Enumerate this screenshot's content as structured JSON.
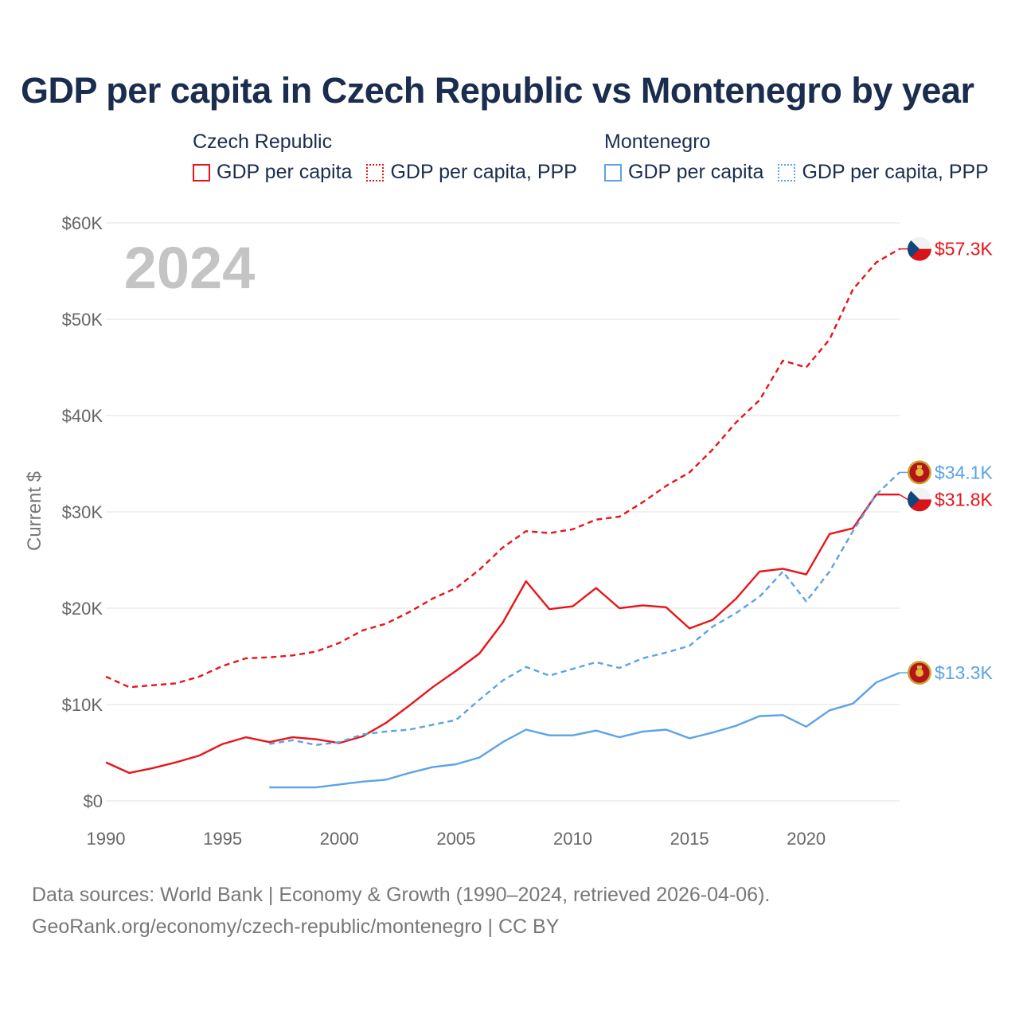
{
  "title": "GDP per capita in Czech Republic vs Montenegro by year",
  "legend": {
    "groups": [
      {
        "country": "Czech Republic",
        "color": "#e8141a",
        "items": [
          {
            "label": "GDP per capita",
            "style": "solid"
          },
          {
            "label": "GDP per capita, PPP",
            "style": "dotted"
          }
        ]
      },
      {
        "country": "Montenegro",
        "color": "#5ba3e6",
        "items": [
          {
            "label": "GDP per capita",
            "style": "solid"
          },
          {
            "label": "GDP per capita, PPP",
            "style": "dotted"
          }
        ]
      }
    ]
  },
  "year_watermark": "2024",
  "footer": {
    "line1": "Data sources: World Bank | Economy & Growth (1990–2024, retrieved 2026-04-06).",
    "line2": "GeoRank.org/economy/czech-republic/montenegro | CC BY"
  },
  "chart_data": {
    "type": "line",
    "title": "GDP per capita in Czech Republic vs Montenegro by year",
    "xlabel": "",
    "ylabel": "Current $",
    "xlim": [
      1990,
      2024
    ],
    "ylim": [
      0,
      60000
    ],
    "x_ticks": [
      1990,
      1995,
      2000,
      2005,
      2010,
      2015,
      2020
    ],
    "x_tick_labels": [
      "1990",
      "1995",
      "2000",
      "2005",
      "2010",
      "2015",
      "2020"
    ],
    "y_ticks": [
      0,
      10000,
      20000,
      30000,
      40000,
      50000,
      60000
    ],
    "y_tick_labels": [
      "$0",
      "$10K",
      "$20K",
      "$30K",
      "$40K",
      "$50K",
      "$60K"
    ],
    "grid": true,
    "series": [
      {
        "name": "Czech Republic GDP per capita, PPP",
        "country": "Czech Republic",
        "color": "#e8141a",
        "dash": "dashed",
        "x": [
          1990,
          1991,
          1992,
          1993,
          1994,
          1995,
          1996,
          1997,
          1998,
          1999,
          2000,
          2001,
          2002,
          2003,
          2004,
          2005,
          2006,
          2007,
          2008,
          2009,
          2010,
          2011,
          2012,
          2013,
          2014,
          2015,
          2016,
          2017,
          2018,
          2019,
          2020,
          2021,
          2022,
          2023,
          2024
        ],
        "values": [
          12900,
          11800,
          12000,
          12200,
          12900,
          14000,
          14800,
          14900,
          15100,
          15500,
          16400,
          17700,
          18400,
          19600,
          21000,
          22100,
          24000,
          26300,
          28000,
          27800,
          28200,
          29200,
          29500,
          31000,
          32700,
          34100,
          36500,
          39300,
          41600,
          45700,
          45000,
          47900,
          53100,
          55900,
          57300
        ],
        "end_label": "$57.3K"
      },
      {
        "name": "Czech Republic GDP per capita",
        "country": "Czech Republic",
        "color": "#e8141a",
        "dash": "solid",
        "x": [
          1990,
          1991,
          1992,
          1993,
          1994,
          1995,
          1996,
          1997,
          1998,
          1999,
          2000,
          2001,
          2002,
          2003,
          2004,
          2005,
          2006,
          2007,
          2008,
          2009,
          2010,
          2011,
          2012,
          2013,
          2014,
          2015,
          2016,
          2017,
          2018,
          2019,
          2020,
          2021,
          2022,
          2023,
          2024
        ],
        "values": [
          4000,
          2900,
          3400,
          4000,
          4700,
          5900,
          6600,
          6100,
          6600,
          6400,
          6000,
          6700,
          8100,
          9900,
          11800,
          13500,
          15300,
          18500,
          22800,
          19900,
          20200,
          22100,
          20000,
          20300,
          20100,
          17900,
          18800,
          21000,
          23800,
          24100,
          23500,
          27700,
          28300,
          31800,
          31800
        ],
        "end_label": "$31.8K"
      },
      {
        "name": "Montenegro GDP per capita, PPP",
        "country": "Montenegro",
        "color": "#5ba3e6",
        "dash": "dashed",
        "x": [
          1997,
          1998,
          1999,
          2000,
          2001,
          2002,
          2003,
          2004,
          2005,
          2006,
          2007,
          2008,
          2009,
          2010,
          2011,
          2012,
          2013,
          2014,
          2015,
          2016,
          2017,
          2018,
          2019,
          2020,
          2021,
          2022,
          2023,
          2024
        ],
        "values": [
          5900,
          6300,
          5800,
          6100,
          6900,
          7200,
          7400,
          7900,
          8400,
          10500,
          12500,
          13900,
          13000,
          13700,
          14400,
          13800,
          14800,
          15400,
          16100,
          18100,
          19500,
          21200,
          23800,
          20700,
          23800,
          28000,
          31800,
          34100
        ],
        "end_label": "$34.1K"
      },
      {
        "name": "Montenegro GDP per capita",
        "country": "Montenegro",
        "color": "#5ba3e6",
        "dash": "solid",
        "x": [
          1997,
          1998,
          1999,
          2000,
          2001,
          2002,
          2003,
          2004,
          2005,
          2006,
          2007,
          2008,
          2009,
          2010,
          2011,
          2012,
          2013,
          2014,
          2015,
          2016,
          2017,
          2018,
          2019,
          2020,
          2021,
          2022,
          2023,
          2024
        ],
        "values": [
          1400,
          1400,
          1400,
          1700,
          2000,
          2200,
          2900,
          3500,
          3800,
          4500,
          6100,
          7400,
          6800,
          6800,
          7300,
          6600,
          7200,
          7400,
          6500,
          7100,
          7800,
          8800,
          8900,
          7700,
          9400,
          10100,
          12300,
          13300
        ],
        "end_label": "$13.3K"
      }
    ]
  }
}
